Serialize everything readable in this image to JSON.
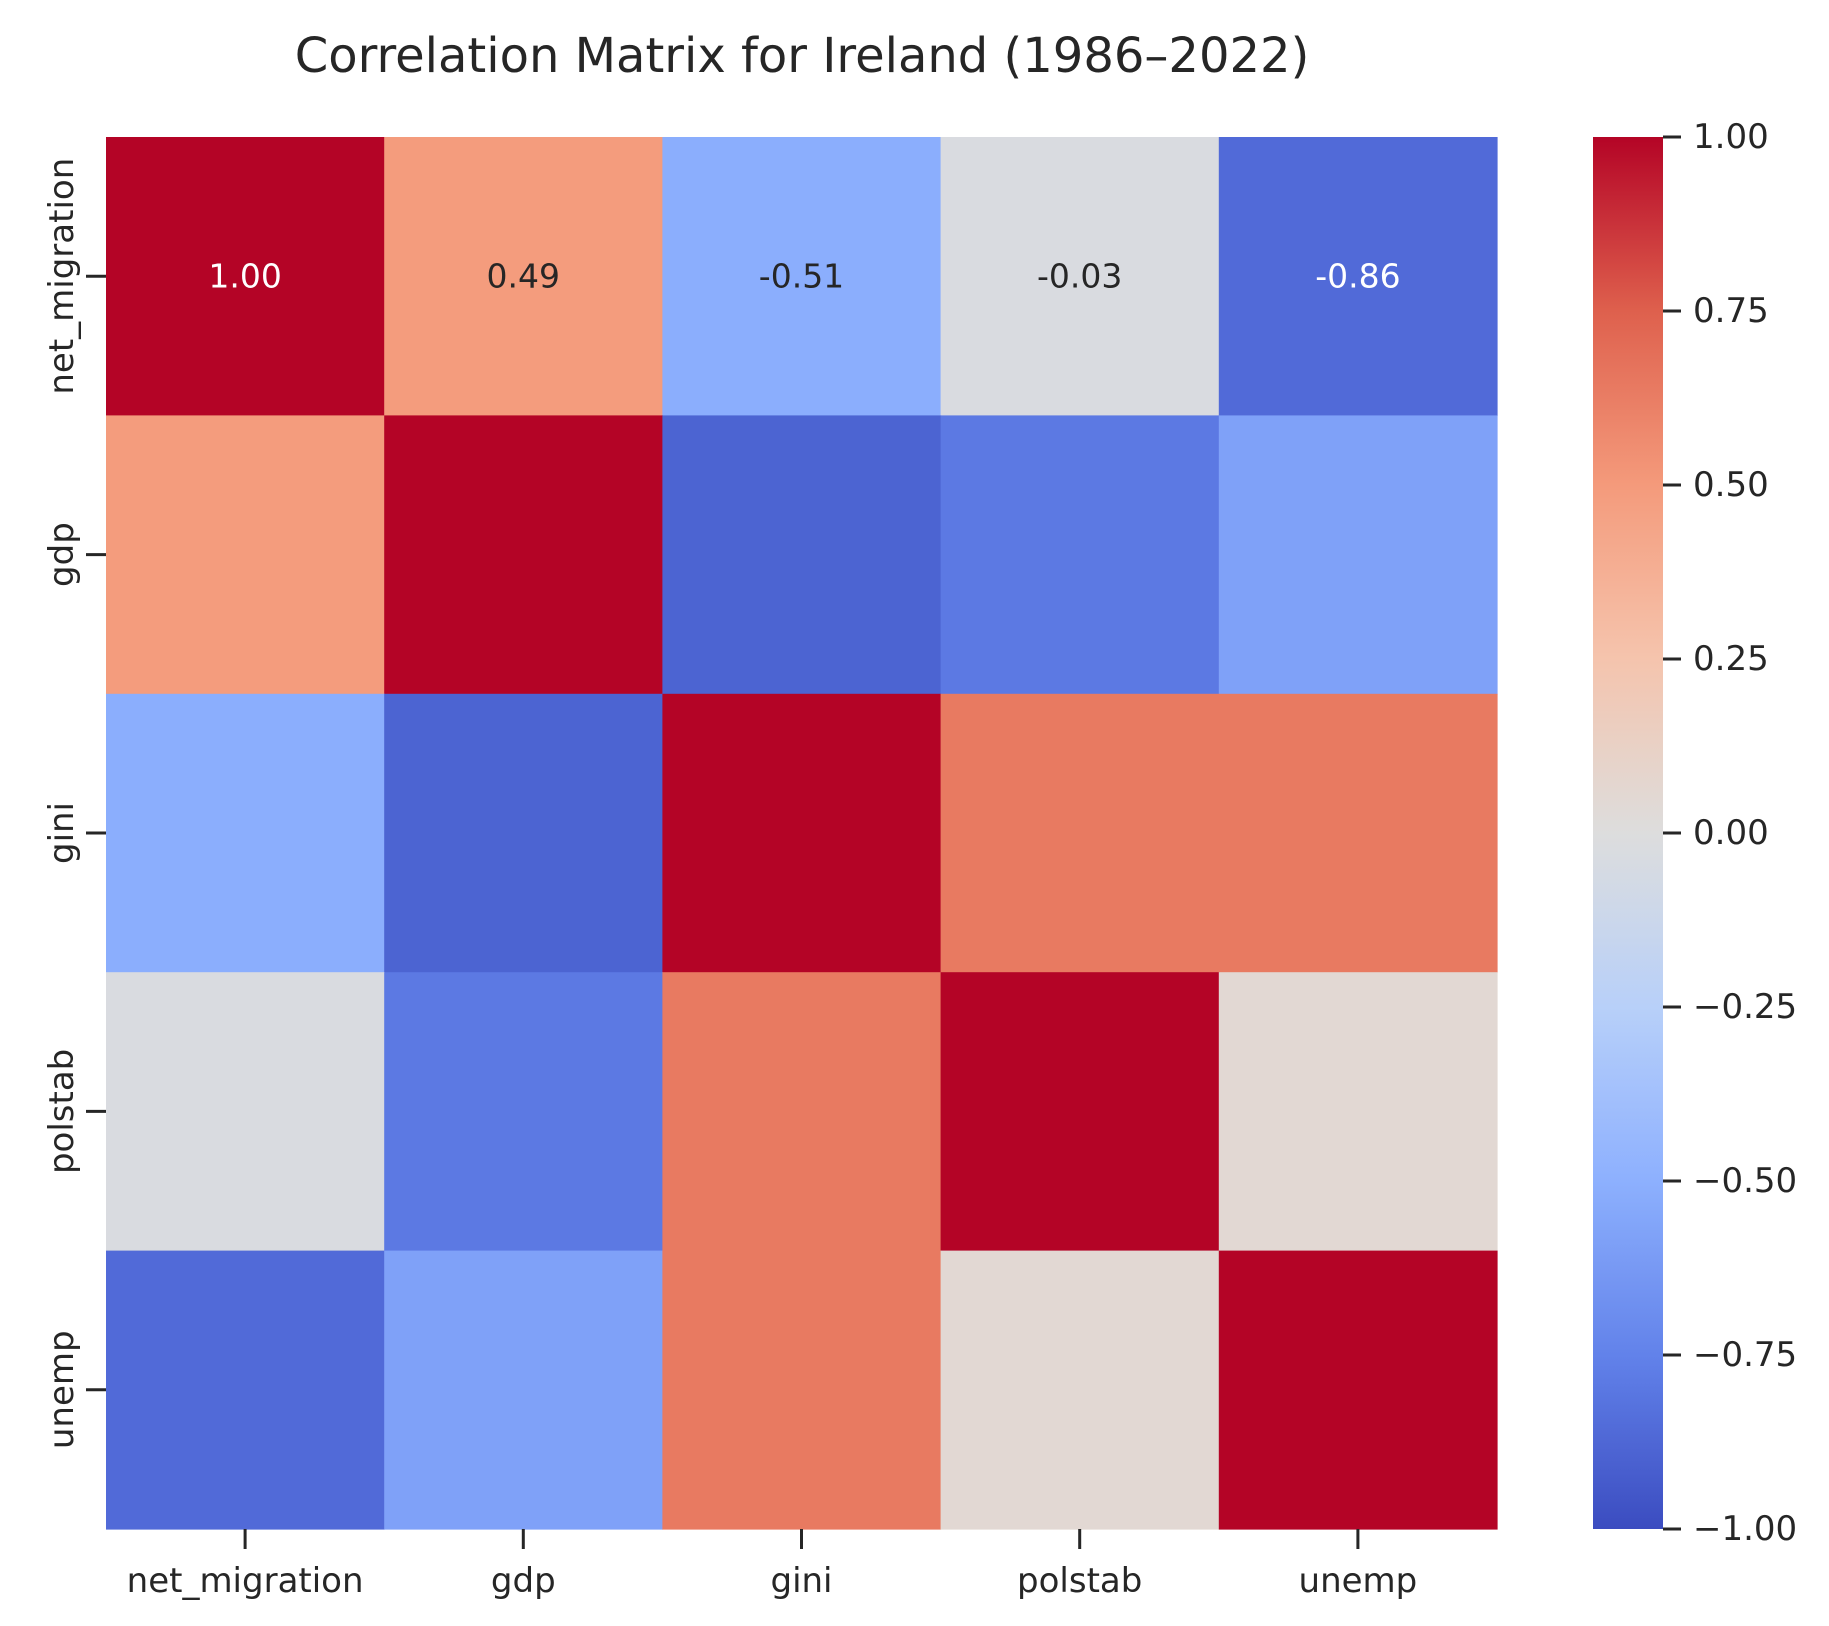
{
  "chart_data": {
    "type": "heatmap",
    "title": "Correlation Matrix for Ireland (1986–2022)",
    "xlabel": "",
    "ylabel": "",
    "x_categories": [
      "net_migration",
      "gdp",
      "gini",
      "polstab",
      "unemp"
    ],
    "y_categories": [
      "net_migration",
      "gdp",
      "gini",
      "polstab",
      "unemp"
    ],
    "values": [
      [
        1.0,
        0.49,
        -0.51,
        -0.03,
        -0.86
      ],
      [
        0.49,
        1.0,
        -0.89,
        -0.79,
        -0.58
      ],
      [
        -0.51,
        -0.89,
        1.0,
        0.64,
        0.64
      ],
      [
        -0.03,
        -0.79,
        0.64,
        1.0,
        0.05
      ],
      [
        -0.86,
        -0.58,
        0.64,
        0.05,
        1.0
      ]
    ],
    "annotations": [
      [
        "1.00",
        "0.49",
        "-0.51",
        "-0.03",
        "-0.86"
      ],
      [
        "",
        "",
        "",
        "",
        ""
      ],
      [
        "",
        "",
        "",
        "",
        ""
      ],
      [
        "",
        "",
        "",
        "",
        ""
      ],
      [
        "",
        "",
        "",
        "",
        ""
      ]
    ],
    "colormap": "coolwarm",
    "vmin": -1.0,
    "vmax": 1.0,
    "colorbar_ticks": [
      1.0,
      0.75,
      0.5,
      0.25,
      0.0,
      -0.25,
      -0.5,
      -0.75,
      -1.0
    ],
    "colorbar_tick_labels": [
      "1.00",
      "0.75",
      "0.50",
      "0.25",
      "0.00",
      "−0.25",
      "−0.50",
      "−0.75",
      "−1.00"
    ],
    "grid": false,
    "legend": "colorbar-right"
  }
}
